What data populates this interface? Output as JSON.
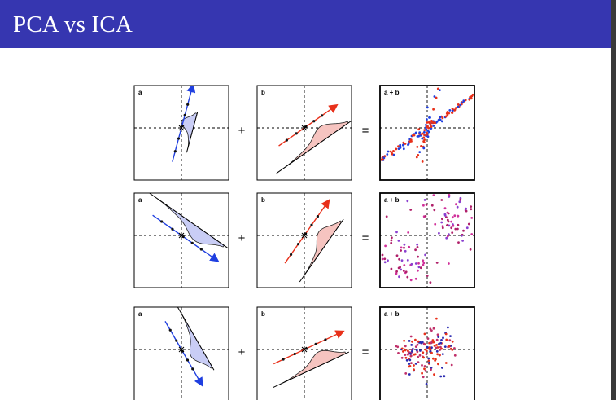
{
  "slide": {
    "title": "PCA vs ICA",
    "colors": {
      "title_bar": "#3636b0",
      "title_text": "#ffffff",
      "component_a": "#1f3fe0",
      "component_b": "#e8301a",
      "fill_a": "#c9cdf5",
      "fill_b": "#f6c4c0"
    }
  },
  "diagram": {
    "rows": [
      {
        "panel_labels": [
          "a",
          "b",
          "a + b"
        ],
        "plus_symbol": "+",
        "equals_symbol": "=",
        "mixture_colors": [
          "#1f3fe0",
          "#e8301a"
        ]
      },
      {
        "panel_labels": [
          "a",
          "b",
          "a + b"
        ],
        "plus_symbol": "+",
        "equals_symbol": "=",
        "mixture_colors": [
          "#8a3fd0",
          "#d0309a",
          "#b0206a"
        ]
      },
      {
        "panel_labels": [
          "a",
          "b",
          "a + b"
        ],
        "plus_symbol": "+",
        "equals_symbol": "=",
        "mixture_colors": [
          "#2a2ab0",
          "#c0306a",
          "#e8301a"
        ]
      }
    ]
  }
}
